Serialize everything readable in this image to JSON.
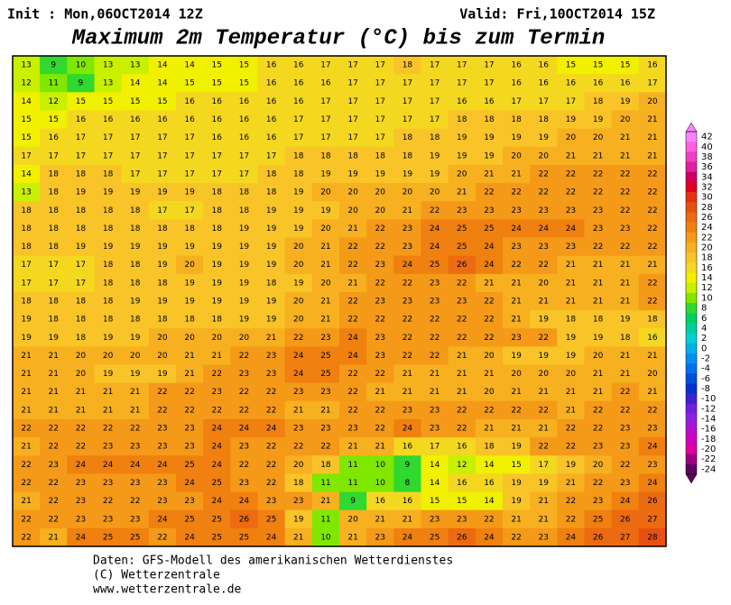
{
  "header": {
    "init": "Init : Mon,06OCT2014 12Z",
    "valid": "Valid: Fri,10OCT2014 15Z",
    "title": "Maximum 2m Temperatur (°C) bis zum Termin"
  },
  "map": {
    "rows": [
      [
        13,
        9,
        10,
        13,
        13,
        14,
        14,
        15,
        15,
        16,
        16,
        17,
        17,
        17,
        18,
        17,
        17,
        17,
        16,
        16,
        15,
        15,
        15,
        16
      ],
      [
        12,
        11,
        9,
        13,
        14,
        14,
        15,
        15,
        15,
        16,
        16,
        16,
        17,
        17,
        17,
        17,
        17,
        17,
        16,
        16,
        16,
        16,
        16,
        17
      ],
      [
        14,
        12,
        15,
        15,
        15,
        15,
        16,
        16,
        16,
        16,
        16,
        17,
        17,
        17,
        17,
        17,
        16,
        16,
        17,
        17,
        17,
        18,
        19,
        20
      ],
      [
        15,
        15,
        16,
        16,
        16,
        16,
        16,
        16,
        16,
        16,
        17,
        17,
        17,
        17,
        17,
        17,
        18,
        18,
        18,
        18,
        19,
        19,
        20,
        21
      ],
      [
        15,
        16,
        17,
        17,
        17,
        17,
        17,
        16,
        16,
        16,
        17,
        17,
        17,
        17,
        18,
        18,
        19,
        19,
        19,
        19,
        20,
        20,
        21,
        21
      ],
      [
        17,
        17,
        17,
        17,
        17,
        17,
        17,
        17,
        17,
        17,
        18,
        18,
        18,
        18,
        18,
        19,
        19,
        19,
        20,
        20,
        21,
        21,
        21,
        21
      ],
      [
        14,
        18,
        18,
        18,
        17,
        17,
        17,
        17,
        17,
        18,
        18,
        19,
        19,
        19,
        19,
        19,
        20,
        21,
        21,
        22,
        22,
        22,
        22,
        22
      ],
      [
        13,
        18,
        19,
        19,
        19,
        19,
        19,
        18,
        18,
        18,
        19,
        20,
        20,
        20,
        20,
        20,
        21,
        22,
        22,
        22,
        22,
        22,
        22,
        22
      ],
      [
        18,
        18,
        18,
        18,
        18,
        17,
        17,
        18,
        18,
        19,
        19,
        19,
        20,
        20,
        21,
        22,
        23,
        23,
        23,
        23,
        23,
        23,
        22,
        22
      ],
      [
        18,
        18,
        18,
        18,
        18,
        18,
        18,
        18,
        19,
        19,
        19,
        20,
        21,
        22,
        23,
        24,
        25,
        25,
        24,
        24,
        24,
        23,
        23,
        22
      ],
      [
        18,
        18,
        19,
        19,
        19,
        19,
        19,
        19,
        19,
        19,
        20,
        21,
        22,
        22,
        23,
        24,
        25,
        24,
        23,
        23,
        23,
        22,
        22,
        22
      ],
      [
        17,
        17,
        17,
        18,
        18,
        19,
        20,
        19,
        19,
        19,
        20,
        21,
        22,
        23,
        24,
        25,
        26,
        24,
        22,
        22,
        21,
        21,
        21,
        21
      ],
      [
        17,
        17,
        17,
        18,
        18,
        18,
        19,
        19,
        19,
        18,
        19,
        20,
        21,
        22,
        22,
        23,
        22,
        21,
        21,
        20,
        21,
        21,
        21,
        22
      ],
      [
        18,
        18,
        18,
        18,
        19,
        19,
        19,
        19,
        19,
        19,
        20,
        21,
        22,
        23,
        23,
        23,
        23,
        22,
        21,
        21,
        21,
        21,
        21,
        22
      ],
      [
        19,
        18,
        18,
        18,
        18,
        18,
        18,
        18,
        19,
        19,
        20,
        21,
        22,
        22,
        22,
        22,
        22,
        22,
        21,
        19,
        18,
        18,
        19,
        18
      ],
      [
        19,
        19,
        18,
        19,
        19,
        20,
        20,
        20,
        20,
        21,
        22,
        23,
        24,
        23,
        22,
        22,
        22,
        22,
        23,
        22,
        19,
        19,
        18,
        16
      ],
      [
        21,
        21,
        20,
        20,
        20,
        20,
        21,
        21,
        22,
        23,
        24,
        25,
        24,
        23,
        22,
        22,
        21,
        20,
        19,
        19,
        19,
        20,
        21,
        21
      ],
      [
        21,
        21,
        20,
        19,
        19,
        19,
        21,
        22,
        23,
        23,
        24,
        25,
        22,
        22,
        21,
        21,
        21,
        21,
        20,
        20,
        20,
        21,
        21,
        20
      ],
      [
        21,
        21,
        21,
        21,
        21,
        22,
        22,
        23,
        22,
        22,
        23,
        23,
        22,
        21,
        21,
        21,
        21,
        20,
        21,
        21,
        21,
        21,
        22,
        21
      ],
      [
        21,
        21,
        21,
        21,
        21,
        22,
        22,
        22,
        22,
        22,
        21,
        21,
        22,
        22,
        23,
        23,
        22,
        22,
        22,
        22,
        21,
        22,
        22,
        22
      ],
      [
        22,
        22,
        22,
        22,
        22,
        23,
        23,
        24,
        24,
        24,
        23,
        23,
        23,
        22,
        24,
        23,
        22,
        21,
        21,
        21,
        22,
        22,
        23,
        23
      ],
      [
        21,
        22,
        22,
        23,
        23,
        23,
        23,
        24,
        23,
        22,
        22,
        22,
        21,
        21,
        16,
        17,
        16,
        18,
        19,
        22,
        22,
        23,
        23,
        24
      ],
      [
        22,
        23,
        24,
        24,
        24,
        24,
        25,
        24,
        22,
        22,
        20,
        18,
        11,
        10,
        9,
        14,
        12,
        14,
        15,
        17,
        19,
        20,
        22,
        23
      ],
      [
        22,
        22,
        23,
        23,
        23,
        23,
        24,
        25,
        23,
        22,
        18,
        11,
        11,
        10,
        8,
        14,
        16,
        16,
        19,
        19,
        21,
        22,
        23,
        24
      ],
      [
        21,
        22,
        23,
        22,
        22,
        23,
        23,
        24,
        24,
        23,
        23,
        21,
        9,
        16,
        16,
        15,
        15,
        14,
        19,
        21,
        22,
        23,
        24,
        26
      ],
      [
        22,
        22,
        23,
        23,
        23,
        24,
        25,
        25,
        26,
        25,
        19,
        11,
        20,
        21,
        21,
        23,
        23,
        22,
        21,
        21,
        22,
        25,
        26,
        27
      ],
      [
        22,
        21,
        24,
        25,
        25,
        22,
        24,
        25,
        25,
        24,
        21,
        10,
        21,
        23,
        24,
        25,
        26,
        24,
        22,
        23,
        24,
        26,
        27,
        28
      ]
    ]
  },
  "colorbar": {
    "levels": [
      42,
      40,
      38,
      36,
      34,
      32,
      30,
      28,
      26,
      24,
      22,
      20,
      18,
      16,
      14,
      12,
      10,
      8,
      6,
      4,
      2,
      0,
      -2,
      -4,
      -6,
      -8,
      -10,
      -12,
      -14,
      -16,
      -18,
      -20,
      -22,
      -24
    ],
    "colors": [
      "#ff80ff",
      "#ff60e0",
      "#f040c0",
      "#e020a0",
      "#d00060",
      "#e00020",
      "#e83010",
      "#e85010",
      "#ec6a10",
      "#f08010",
      "#f49a18",
      "#f6b020",
      "#f8c428",
      "#f4d820",
      "#f0f000",
      "#c8f000",
      "#80e800",
      "#30d830",
      "#00d060",
      "#00d0a0",
      "#00d0d0",
      "#00b0e8",
      "#0090f0",
      "#0070f0",
      "#0050e0",
      "#0030d0",
      "#4020d0",
      "#7020e0",
      "#9020e0",
      "#b010d0",
      "#d000c0",
      "#e000a0",
      "#a00080",
      "#600060"
    ]
  },
  "footer": {
    "lines": [
      "Daten: GFS-Modell des amerikanischen Wetterdienstes",
      "(C) Wetterzentrale",
      "www.wetterzentrale.de"
    ]
  }
}
